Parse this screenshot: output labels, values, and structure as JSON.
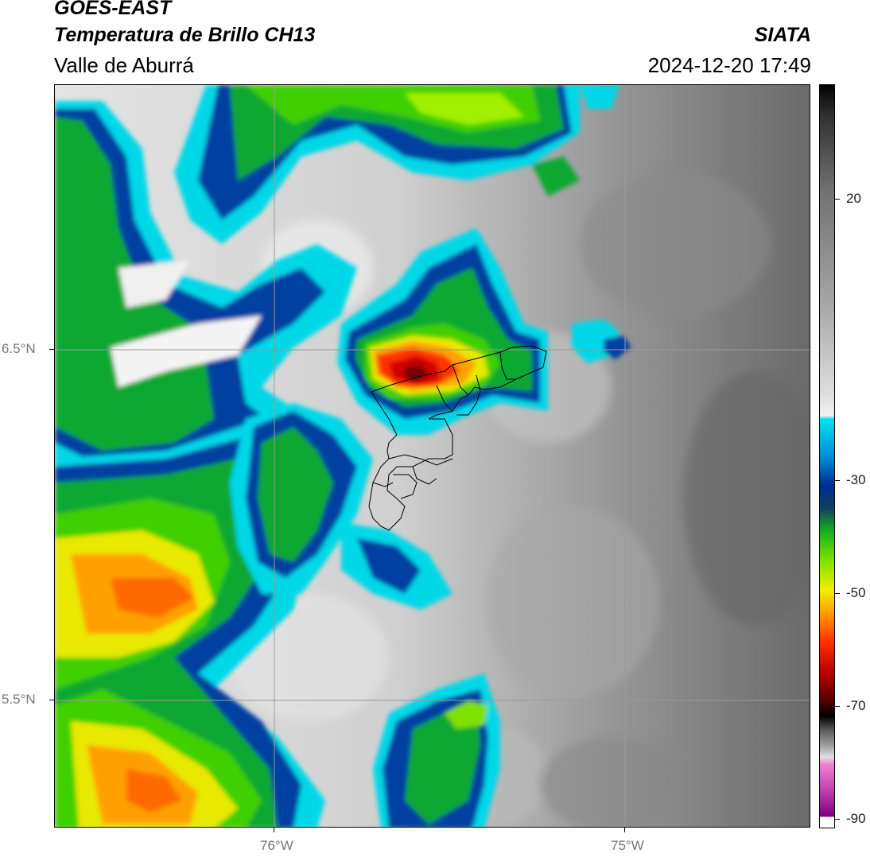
{
  "header": {
    "satellite": "GOES-EAST",
    "product": "Temperatura de Brillo CH13",
    "region": "Valle de Aburrá",
    "agency": "SIATA",
    "datetime": "2024-12-20 17:49"
  },
  "map": {
    "lat_labels": [
      "6.5°N",
      "5.5°N"
    ],
    "lon_labels": [
      "76°W",
      "75°W"
    ],
    "lon_range": [
      -76.625,
      -74.47
    ],
    "lat_range": [
      5.14,
      7.25
    ],
    "gridlines": true,
    "overlay": "municipal boundaries of Valle de Aburrá"
  },
  "colorbar": {
    "ticks": [
      "20",
      "-30",
      "-50",
      "-70",
      "-90"
    ],
    "tick_values": [
      20,
      -30,
      -50,
      -70,
      -90
    ],
    "range": [
      -92,
      38
    ],
    "colors": {
      "warm_gray": "#6e6e6e",
      "light_gray": "#f0f0f0",
      "cyan": "#00e0f0",
      "dark_blue": "#002a90",
      "green": "#10b020",
      "yellow": "#f0f000",
      "orange": "#ff8c00",
      "red": "#e00000",
      "dark_red": "#500000",
      "black": "#000000",
      "magenta": "#e040c0",
      "purple": "#800080"
    }
  }
}
